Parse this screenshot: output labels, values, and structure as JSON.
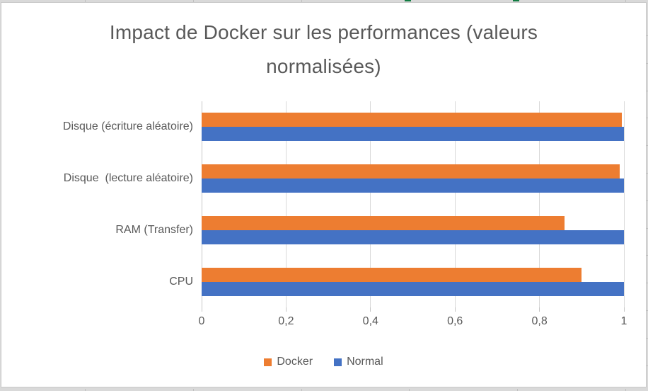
{
  "chart_data": {
    "type": "bar",
    "orientation": "horizontal",
    "title": "Impact de Docker sur les performances (valeurs normalisées)",
    "title_lines": [
      "Impact de Docker sur les performances (valeurs",
      "normalisées)"
    ],
    "categories": [
      "Disque (écriture aléatoire)",
      "Disque  (lecture aléatoire)",
      "RAM (Transfer)",
      "CPU"
    ],
    "series": [
      {
        "name": "Docker",
        "color": "#ED7D31",
        "values": [
          0.995,
          0.99,
          0.86,
          0.9
        ]
      },
      {
        "name": "Normal",
        "color": "#4472C4",
        "values": [
          1.0,
          1.0,
          1.0,
          1.0
        ]
      }
    ],
    "xlabel": "",
    "ylabel": "",
    "xlim": [
      0,
      1
    ],
    "x_ticks": [
      {
        "value": 0,
        "label": "0"
      },
      {
        "value": 0.2,
        "label": "0,2"
      },
      {
        "value": 0.4,
        "label": "0,4"
      },
      {
        "value": 0.6,
        "label": "0,6"
      },
      {
        "value": 0.8,
        "label": "0,8"
      },
      {
        "value": 1,
        "label": "1"
      }
    ],
    "grid": "vertical-only",
    "legend_position": "bottom",
    "colors": {
      "grid": "#D9D9D9",
      "axis_line": "#C6C6C6",
      "text": "#595959",
      "docker": "#ED7D31",
      "normal": "#4472C4"
    }
  }
}
